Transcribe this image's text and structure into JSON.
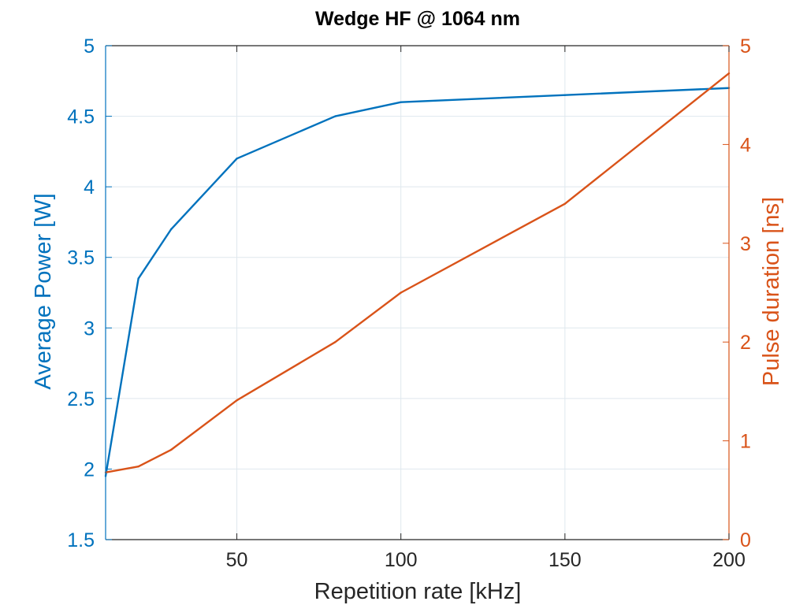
{
  "chart_data": {
    "type": "line",
    "title": "Wedge HF @ 1064 nm",
    "xlabel": "Repetition rate [kHz]",
    "ylabel_left": "Average Power [W]",
    "ylabel_right": "Pulse duration [ns]",
    "xlim": [
      10,
      200
    ],
    "ylim_left": [
      1.5,
      5
    ],
    "ylim_right": [
      0,
      5
    ],
    "x_ticks": [
      50,
      100,
      150,
      200
    ],
    "x_tick_labels": [
      "50",
      "100",
      "150",
      "200"
    ],
    "y_left_ticks": [
      1.5,
      2,
      2.5,
      3,
      3.5,
      4,
      4.5,
      5
    ],
    "y_left_tick_labels": [
      "1.5",
      "2",
      "2.5",
      "3",
      "3.5",
      "4",
      "4.5",
      "5"
    ],
    "y_right_ticks": [
      0,
      1,
      2,
      3,
      4,
      5
    ],
    "y_right_tick_labels": [
      "0",
      "1",
      "2",
      "3",
      "4",
      "5"
    ],
    "grid": true,
    "colors": {
      "left_axis": "#0072BD",
      "right_axis": "#D95319",
      "text": "#262626",
      "grid": "#dfe8ee",
      "box": "#262626"
    },
    "series": [
      {
        "axis": "left",
        "color": "#0072BD",
        "x": [
          10,
          20,
          30,
          50,
          80,
          100,
          150,
          200
        ],
        "values": [
          1.95,
          3.35,
          3.7,
          4.2,
          4.5,
          4.6,
          4.65,
          4.7
        ]
      },
      {
        "axis": "right",
        "color": "#D95319",
        "x": [
          10,
          20,
          30,
          50,
          80,
          100,
          150,
          200
        ],
        "values": [
          0.68,
          0.74,
          0.91,
          1.41,
          2.0,
          2.5,
          3.4,
          4.72
        ]
      }
    ]
  }
}
